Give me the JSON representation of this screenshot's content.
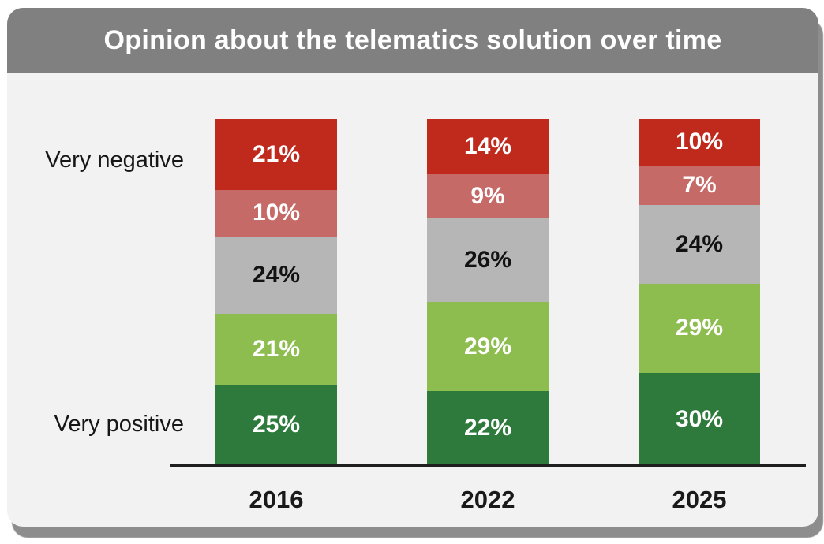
{
  "card": {
    "title": "Opinion about the telematics solution over time",
    "title_color": "#ffffff",
    "header_background": "#808080",
    "body_background": "#f2f2f2",
    "shadow_color": "#8d8d8d"
  },
  "chart_data": {
    "type": "bar",
    "variant": "100-percent-stacked-column",
    "title": "Opinion about the telematics solution over time",
    "categories": [
      "2016",
      "2022",
      "2025"
    ],
    "axis_labels": {
      "top_left": "Very negative",
      "bottom_left": "Very positive"
    },
    "legend": "none",
    "grid": "off",
    "baseline_color": "#1f1f1f",
    "series_top_to_bottom": [
      {
        "name": "red-top-segment",
        "color": "#bf2a1d",
        "label_color": "#ffffff",
        "values": [
          21,
          14,
          10
        ],
        "labels": [
          "21%",
          "14%",
          "10%"
        ]
      },
      {
        "name": "light-red-segment",
        "color": "#c66a68",
        "label_color": "#ffffff",
        "values": [
          10,
          9,
          7
        ],
        "labels": [
          "10%",
          "9%",
          "7%"
        ]
      },
      {
        "name": "gray-segment",
        "color": "#b6b6b6",
        "label_color": "#121212",
        "values": [
          24,
          26,
          24
        ],
        "labels": [
          "24%",
          "26%",
          "24%"
        ]
      },
      {
        "name": "light-green-segment",
        "color": "#8dbd4e",
        "label_color": "#ffffff",
        "values": [
          21,
          29,
          29
        ],
        "labels": [
          "21%",
          "29%",
          "29%"
        ]
      },
      {
        "name": "dark-green-bottom-segment",
        "color": "#2e7a3c",
        "label_color": "#ffffff",
        "values": [
          25,
          22,
          30
        ],
        "labels": [
          "25%",
          "22%",
          "30%"
        ]
      }
    ]
  }
}
